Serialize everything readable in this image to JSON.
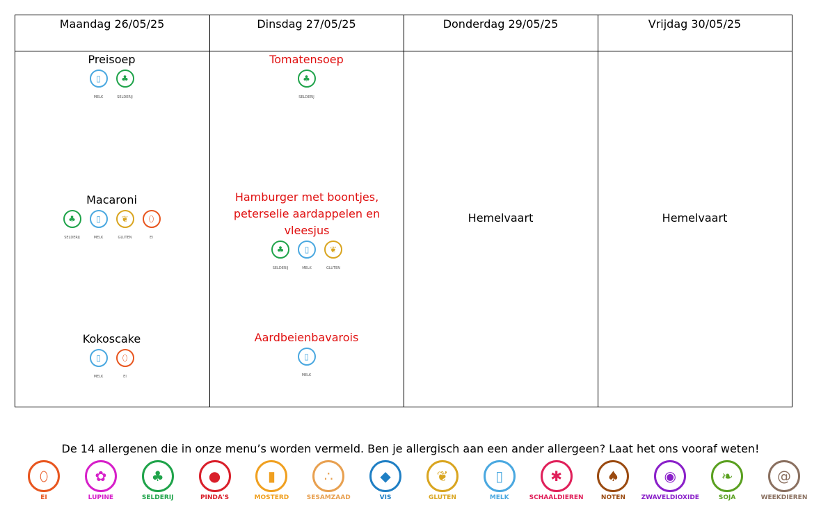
{
  "days": [
    {
      "label": "Maandag 26/05/25"
    },
    {
      "label": "Dinsdag 27/05/25"
    },
    {
      "label": "Donderdag 29/05/25"
    },
    {
      "label": "Vrijdag 30/05/25"
    }
  ],
  "menu": {
    "monday": [
      {
        "name": "Preisoep",
        "allergens": [
          "MELK",
          "SELDERIJ"
        ]
      },
      {
        "name": "Macaroni",
        "allergens": [
          "SELDERIJ",
          "MELK",
          "GLUTEN",
          "EI"
        ]
      },
      {
        "name": "Kokoscake",
        "allergens": [
          "MELK",
          "EI"
        ]
      }
    ],
    "tuesday": [
      {
        "name": "Tomatensoep",
        "allergens": [
          "SELDERIJ"
        ]
      },
      {
        "name": "Hamburger met boontjes, peterselie aardappelen en vleesjus",
        "allergens": [
          "SELDERIJ",
          "MELK",
          "GLUTEN"
        ]
      },
      {
        "name": "Aardbeienbavarois",
        "allergens": [
          "MELK"
        ]
      }
    ],
    "thursday": {
      "text": "Hemelvaart"
    },
    "friday": {
      "text": "Hemelvaart"
    }
  },
  "footnote": "De 14 allergenen die in onze menu’s worden vermeld. Ben je allergisch aan een ander allergeen? Laat het ons vooraf weten!",
  "legend": [
    {
      "label": "EI",
      "icon": "egg-icon",
      "color": "#e8561f"
    },
    {
      "label": "LUPINE",
      "icon": "lupine-icon",
      "color": "#d61fc9"
    },
    {
      "label": "SELDERIJ",
      "icon": "celery-icon",
      "color": "#1fa34a"
    },
    {
      "label": "PINDA'S",
      "icon": "peanut-icon",
      "color": "#d91f2a"
    },
    {
      "label": "MOSTERD",
      "icon": "mustard-icon",
      "color": "#f0a020"
    },
    {
      "label": "SESAMZAAD",
      "icon": "sesame-icon",
      "color": "#e8a050"
    },
    {
      "label": "VIS",
      "icon": "fish-icon",
      "color": "#1f7fc4"
    },
    {
      "label": "GLUTEN",
      "icon": "wheat-icon",
      "color": "#d9a520"
    },
    {
      "label": "MELK",
      "icon": "milk-icon",
      "color": "#4aa8e0"
    },
    {
      "label": "SCHAALDIEREN",
      "icon": "lobster-icon",
      "color": "#e0205a"
    },
    {
      "label": "NOTEN",
      "icon": "nut-icon",
      "color": "#9a4a10"
    },
    {
      "label": "ZWAVELDIOXIDE",
      "icon": "sulphite-icon",
      "color": "#8a20c9"
    },
    {
      "label": "SOJA",
      "icon": "soy-icon",
      "color": "#5aa020"
    },
    {
      "label": "WEEKDIEREN",
      "icon": "snail-icon",
      "color": "#8a7060"
    }
  ]
}
